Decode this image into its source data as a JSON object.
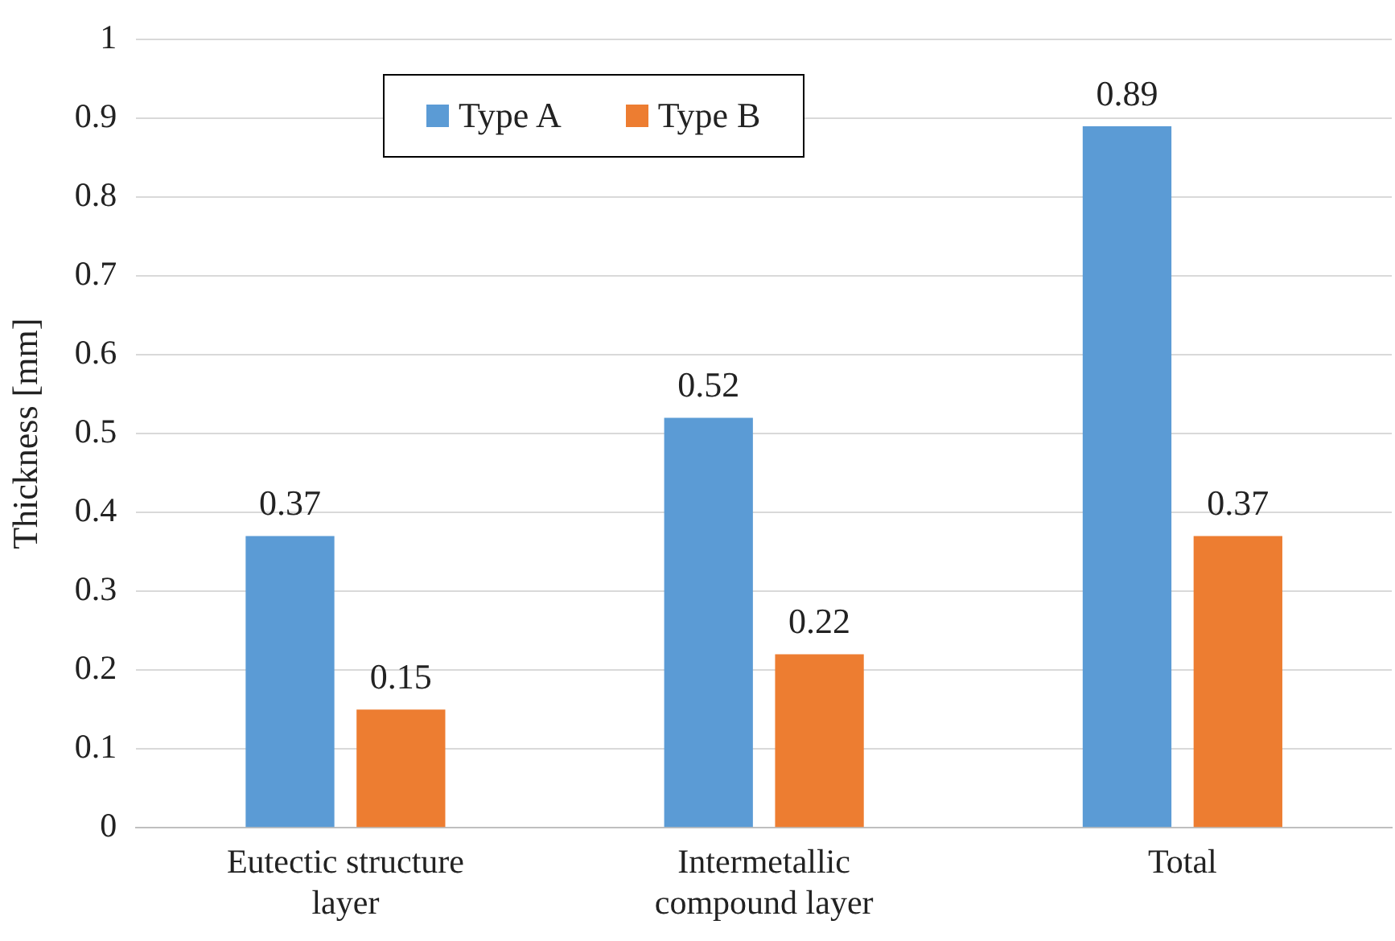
{
  "chart_data": {
    "type": "bar",
    "ylabel": "Thickness [mm]",
    "categories": [
      "Eutectic structure layer",
      "Intermetallic compound layer",
      "Total"
    ],
    "series": [
      {
        "name": "Type A",
        "color": "#5b9bd5",
        "values": [
          0.37,
          0.52,
          0.89
        ]
      },
      {
        "name": "Type B",
        "color": "#ed7d31",
        "values": [
          0.15,
          0.22,
          0.37
        ]
      }
    ],
    "ylim": [
      0,
      1
    ],
    "yticks": [
      0,
      0.1,
      0.2,
      0.3,
      0.4,
      0.5,
      0.6,
      0.7,
      0.8,
      0.9,
      1
    ],
    "grid": "y",
    "legend": "top",
    "data_labels": true
  }
}
